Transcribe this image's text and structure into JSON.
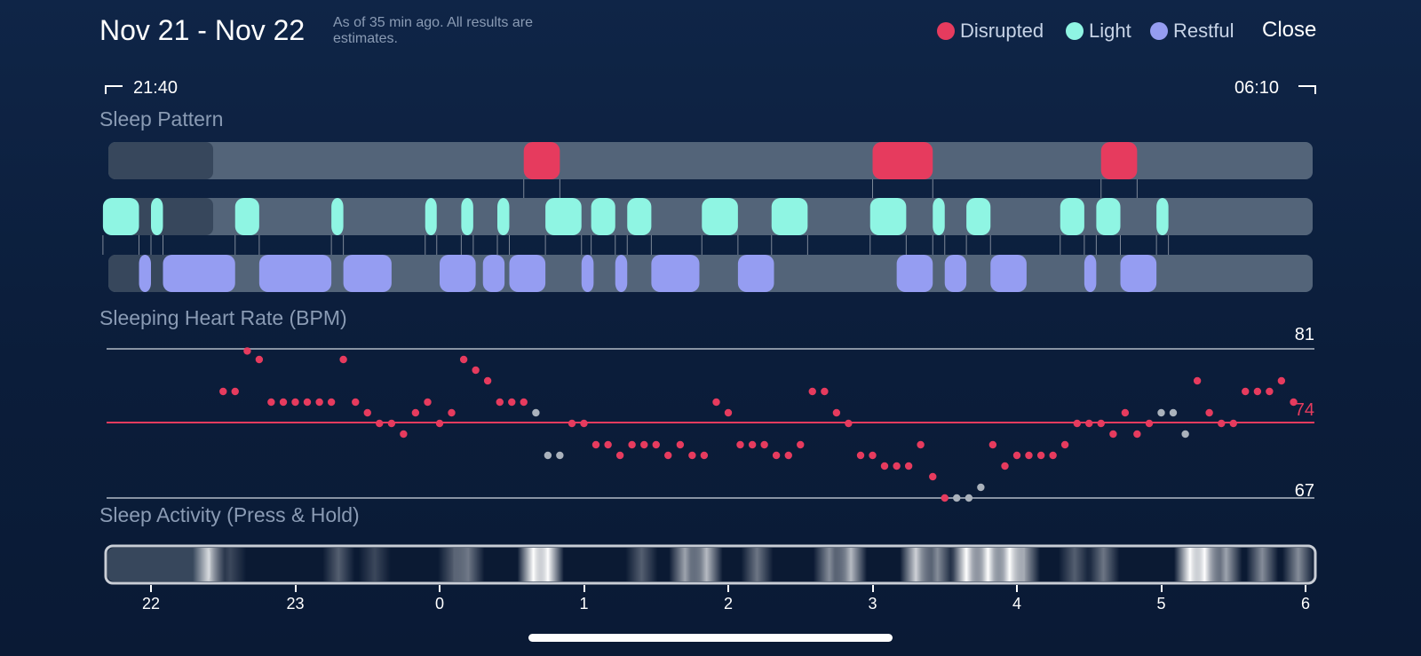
{
  "header": {
    "date_range": "Nov 21 - Nov 22",
    "subtitle": "As of 35 min ago. All results are estimates.",
    "close_label": "Close"
  },
  "legend": [
    {
      "label": "Disrupted",
      "color": "#e63b5e"
    },
    {
      "label": "Light",
      "color": "#8ff5e3"
    },
    {
      "label": "Restful",
      "color": "#959df2"
    }
  ],
  "time_range": {
    "start": "21:40",
    "end": "06:10"
  },
  "sections": {
    "sleep_pattern": "Sleep Pattern",
    "heart_rate": "Sleeping Heart Rate (BPM)",
    "activity": "Sleep Activity (Press & Hold)"
  },
  "colors": {
    "disrupted": "#e63b5e",
    "light": "#8ff5e3",
    "restful": "#959df2",
    "track": "#536479",
    "track_empty": "#37475c",
    "grey_point": "#aab2bc"
  },
  "sleep_pattern": {
    "unit": "hours",
    "start_hour": 21.667,
    "disrupted": [
      [
        0.58,
        0.83
      ],
      [
        3.55,
        3.95
      ],
      [
        5.1,
        5.35
      ]
    ],
    "light": [
      [
        -0.8,
        -0.55
      ],
      [
        -0.47,
        -0.38
      ],
      [
        -0.65,
        -0.65
      ],
      [
        -0.4,
        -0.4
      ],
      [
        -0.62,
        -0.62
      ],
      [
        -0.3,
        -0.3
      ],
      [
        -0.2,
        -0.2
      ],
      [
        -0.7,
        -0.7
      ]
    ],
    "light_intervals": [
      [
        21.667,
        21.917
      ],
      [
        22.0,
        22.083
      ],
      [
        22.583,
        22.75
      ],
      [
        23.25,
        23.333
      ],
      [
        23.9,
        23.98
      ],
      [
        24.15,
        24.233
      ],
      [
        24.4,
        24.483
      ],
      [
        24.733,
        24.983
      ],
      [
        25.05,
        25.217
      ],
      [
        25.3,
        25.467
      ],
      [
        25.817,
        26.067
      ],
      [
        26.3,
        26.55
      ],
      [
        26.983,
        27.233
      ],
      [
        27.417,
        27.5
      ],
      [
        27.65,
        27.817
      ],
      [
        28.3,
        28.467
      ],
      [
        28.55,
        28.717
      ],
      [
        28.967,
        29.05
      ]
    ],
    "restful_intervals": [
      [
        21.917,
        22.0
      ],
      [
        22.083,
        22.583
      ],
      [
        22.75,
        23.25
      ],
      [
        23.333,
        23.667
      ],
      [
        24.0,
        24.25
      ],
      [
        24.3,
        24.45
      ],
      [
        24.483,
        24.733
      ],
      [
        24.983,
        25.067
      ],
      [
        25.217,
        25.3
      ],
      [
        25.467,
        25.8
      ],
      [
        26.067,
        26.317
      ],
      [
        27.167,
        27.417
      ],
      [
        27.5,
        27.65
      ],
      [
        27.817,
        28.067
      ],
      [
        28.467,
        28.55
      ],
      [
        28.717,
        28.967
      ]
    ],
    "disrupted_intervals": [
      [
        24.583,
        24.833
      ],
      [
        27.0,
        27.417
      ],
      [
        28.583,
        28.833
      ]
    ]
  },
  "heart_rate": {
    "max": 81,
    "avg": 74,
    "min": 67,
    "max_label": "81",
    "avg_label": "74",
    "min_label": "67",
    "points": [
      [
        22.5,
        77,
        "r"
      ],
      [
        22.583,
        77,
        "r"
      ],
      [
        22.667,
        80.8,
        "r"
      ],
      [
        22.75,
        80,
        "r"
      ],
      [
        22.833,
        76,
        "r"
      ],
      [
        22.917,
        76,
        "r"
      ],
      [
        23.0,
        76,
        "r"
      ],
      [
        23.083,
        76,
        "r"
      ],
      [
        23.167,
        76,
        "r"
      ],
      [
        23.25,
        76,
        "r"
      ],
      [
        23.333,
        80,
        "r"
      ],
      [
        23.417,
        76,
        "r"
      ],
      [
        23.5,
        75,
        "r"
      ],
      [
        23.583,
        74,
        "r"
      ],
      [
        23.667,
        74,
        "r"
      ],
      [
        23.75,
        73,
        "r"
      ],
      [
        23.833,
        75,
        "r"
      ],
      [
        23.917,
        76,
        "r"
      ],
      [
        24.0,
        74,
        "r"
      ],
      [
        24.083,
        75,
        "r"
      ],
      [
        24.167,
        80,
        "r"
      ],
      [
        24.25,
        79,
        "r"
      ],
      [
        24.333,
        78,
        "r"
      ],
      [
        24.417,
        76,
        "r"
      ],
      [
        24.5,
        76,
        "r"
      ],
      [
        24.583,
        76,
        "r"
      ],
      [
        24.667,
        75,
        "g"
      ],
      [
        24.75,
        71,
        "g"
      ],
      [
        24.833,
        71,
        "g"
      ],
      [
        24.917,
        74,
        "r"
      ],
      [
        25.0,
        74,
        "r"
      ],
      [
        25.083,
        72,
        "r"
      ],
      [
        25.167,
        72,
        "r"
      ],
      [
        25.25,
        71,
        "r"
      ],
      [
        25.333,
        72,
        "r"
      ],
      [
        25.417,
        72,
        "r"
      ],
      [
        25.5,
        72,
        "r"
      ],
      [
        25.583,
        71,
        "r"
      ],
      [
        25.667,
        72,
        "r"
      ],
      [
        25.75,
        71,
        "r"
      ],
      [
        25.833,
        71,
        "r"
      ],
      [
        25.917,
        76,
        "r"
      ],
      [
        26.0,
        75,
        "r"
      ],
      [
        26.083,
        72,
        "r"
      ],
      [
        26.167,
        72,
        "r"
      ],
      [
        26.25,
        72,
        "r"
      ],
      [
        26.333,
        71,
        "r"
      ],
      [
        26.417,
        71,
        "r"
      ],
      [
        26.5,
        72,
        "r"
      ],
      [
        26.583,
        77,
        "r"
      ],
      [
        26.667,
        77,
        "r"
      ],
      [
        26.75,
        75,
        "r"
      ],
      [
        26.833,
        74,
        "r"
      ],
      [
        26.917,
        71,
        "r"
      ],
      [
        27.0,
        71,
        "r"
      ],
      [
        27.083,
        70,
        "r"
      ],
      [
        27.167,
        70,
        "r"
      ],
      [
        27.25,
        70,
        "r"
      ],
      [
        27.333,
        72,
        "r"
      ],
      [
        27.417,
        69,
        "r"
      ],
      [
        27.5,
        67,
        "r"
      ],
      [
        27.583,
        67,
        "g"
      ],
      [
        27.667,
        67,
        "g"
      ],
      [
        27.75,
        68,
        "g"
      ],
      [
        27.833,
        72,
        "r"
      ],
      [
        27.917,
        70,
        "r"
      ],
      [
        28.0,
        71,
        "r"
      ],
      [
        28.083,
        71,
        "r"
      ],
      [
        28.167,
        71,
        "r"
      ],
      [
        28.25,
        71,
        "r"
      ],
      [
        28.333,
        72,
        "r"
      ],
      [
        28.417,
        74,
        "r"
      ],
      [
        28.5,
        74,
        "r"
      ],
      [
        28.583,
        74,
        "r"
      ],
      [
        28.667,
        73,
        "r"
      ],
      [
        28.75,
        75,
        "r"
      ],
      [
        28.833,
        73,
        "r"
      ],
      [
        28.917,
        74,
        "r"
      ],
      [
        29.0,
        75,
        "g"
      ],
      [
        29.083,
        75,
        "g"
      ],
      [
        29.167,
        73,
        "g"
      ],
      [
        29.25,
        78,
        "r"
      ],
      [
        29.333,
        75,
        "r"
      ],
      [
        29.417,
        74,
        "r"
      ],
      [
        29.5,
        74,
        "r"
      ],
      [
        29.583,
        77,
        "r"
      ],
      [
        29.667,
        77,
        "r"
      ],
      [
        29.75,
        77,
        "r"
      ],
      [
        29.833,
        78,
        "r"
      ],
      [
        29.917,
        76,
        "r"
      ]
    ]
  },
  "activity": {
    "bands": [
      [
        22.4,
        0.8
      ],
      [
        22.55,
        0.2
      ],
      [
        23.3,
        0.3
      ],
      [
        23.55,
        0.2
      ],
      [
        24.1,
        0.3
      ],
      [
        24.2,
        0.4
      ],
      [
        24.65,
        1.0
      ],
      [
        24.75,
        1.0
      ],
      [
        25.4,
        0.3
      ],
      [
        25.7,
        0.6
      ],
      [
        25.85,
        0.7
      ],
      [
        26.2,
        0.4
      ],
      [
        26.7,
        0.5
      ],
      [
        26.85,
        0.7
      ],
      [
        27.3,
        0.8
      ],
      [
        27.45,
        0.5
      ],
      [
        27.65,
        1.0
      ],
      [
        27.8,
        1.0
      ],
      [
        27.95,
        1.0
      ],
      [
        28.05,
        0.6
      ],
      [
        28.4,
        0.3
      ],
      [
        28.6,
        0.4
      ],
      [
        29.2,
        1.0
      ],
      [
        29.3,
        1.0
      ],
      [
        29.45,
        0.6
      ],
      [
        29.7,
        0.5
      ],
      [
        29.95,
        0.5
      ]
    ]
  },
  "axis": {
    "ticks": [
      {
        "label": "22",
        "hour": 22
      },
      {
        "label": "23",
        "hour": 23
      },
      {
        "label": "0",
        "hour": 24
      },
      {
        "label": "1",
        "hour": 25
      },
      {
        "label": "2",
        "hour": 26
      },
      {
        "label": "3",
        "hour": 27
      },
      {
        "label": "4",
        "hour": 28
      },
      {
        "label": "5",
        "hour": 29
      },
      {
        "label": "6",
        "hour": 30
      }
    ]
  }
}
